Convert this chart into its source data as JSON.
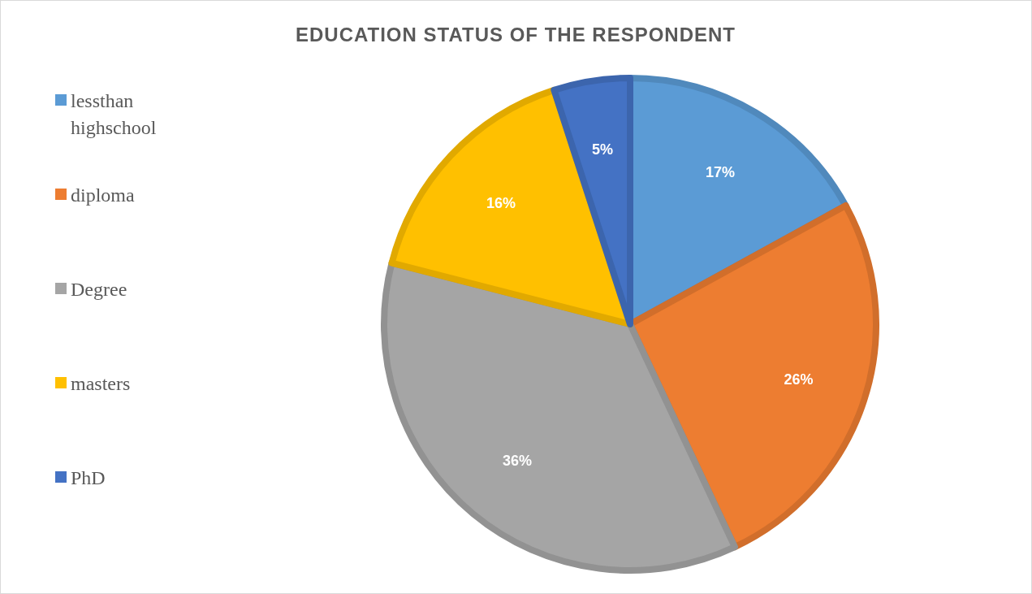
{
  "chart_data": {
    "type": "pie",
    "title": "EDUCATION STATUS OF THE RESPONDENT",
    "categories": [
      "lessthan highschool",
      "diploma",
      "Degree",
      "masters",
      "PhD"
    ],
    "values": [
      17,
      26,
      36,
      16,
      5
    ],
    "value_labels": [
      "17%",
      "26%",
      "36%",
      "16%",
      "5%"
    ],
    "colors": [
      "#5b9bd5",
      "#ed7d31",
      "#a5a5a5",
      "#ffc000",
      "#4472c4"
    ],
    "legend": "left"
  }
}
